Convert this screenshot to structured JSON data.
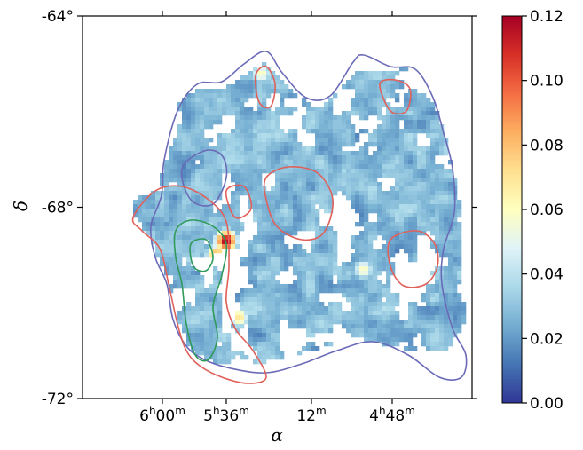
{
  "chart_data": {
    "type": "heatmap",
    "title": "",
    "xlabel": "α",
    "ylabel": "δ",
    "x_ticks": [
      {
        "major": "6",
        "unit": "h",
        "minor": "00",
        "minor_unit": "m"
      },
      {
        "major": "5",
        "unit": "h",
        "minor": "36",
        "minor_unit": "m"
      },
      {
        "major": "",
        "unit": "",
        "minor": "12",
        "minor_unit": "m"
      },
      {
        "major": "4",
        "unit": "h",
        "minor": "48",
        "minor_unit": "m"
      }
    ],
    "y_ticks": [
      "-64°",
      "-68°",
      "-72°"
    ],
    "colorbar": {
      "colormap": "RdYlBu_r",
      "min": 0.0,
      "max": 0.12,
      "ticks": [
        "0.00",
        "0.02",
        "0.04",
        "0.06",
        "0.08",
        "0.10",
        "0.12"
      ]
    },
    "contour_colors": {
      "outer": "#6a6ab8",
      "middle": "#e0605a",
      "inner": "#2f9a5a"
    },
    "hotspots": [
      {
        "ra": "5h40m",
        "dec": -68.7,
        "value": 0.12
      },
      {
        "ra": "5h38m",
        "dec": -69.5,
        "value": 0.1
      },
      {
        "ra": "5h43m",
        "dec": -69.0,
        "value": 0.09
      },
      {
        "ra": "5h36m",
        "dec": -70.3,
        "value": 0.07
      },
      {
        "ra": "5h29m",
        "dec": -65.2,
        "value": 0.06
      },
      {
        "ra": "4h57m",
        "dec": -69.3,
        "value": 0.06
      }
    ],
    "grid": false
  }
}
